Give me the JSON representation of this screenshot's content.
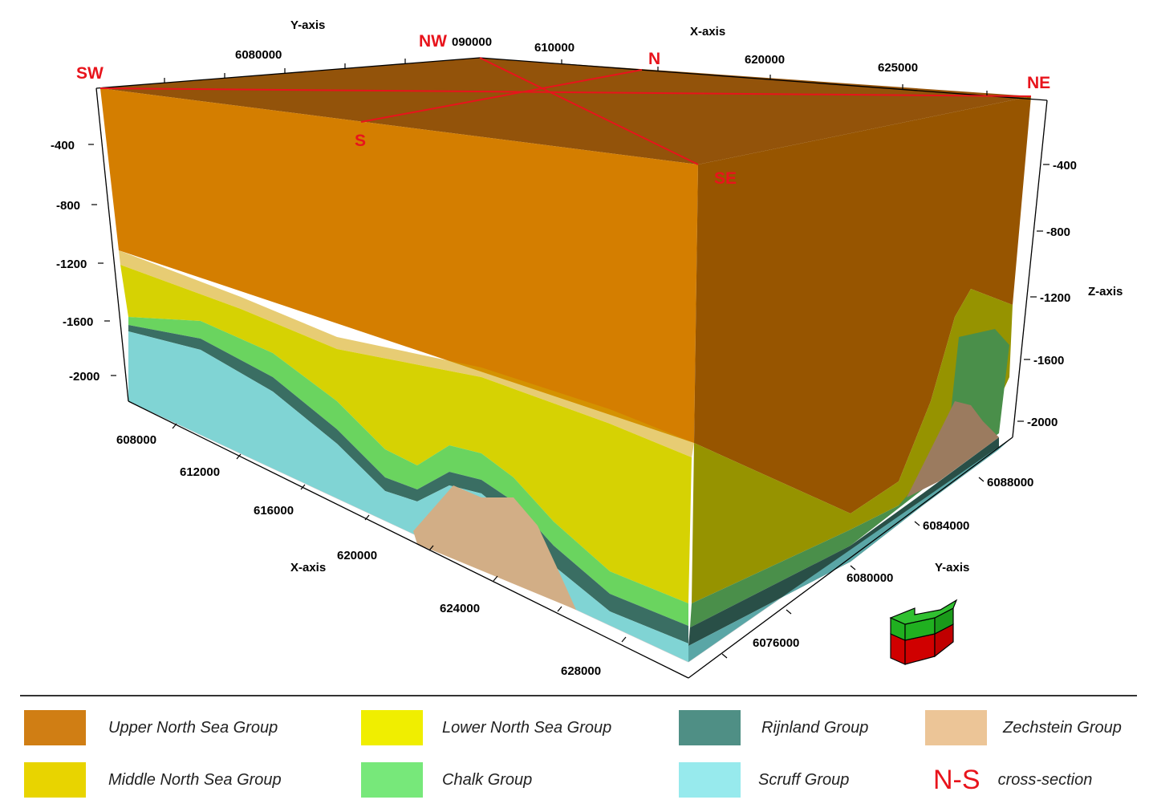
{
  "axes": {
    "y_axis_top_title": "Y-axis",
    "x_axis_top_title": "X-axis",
    "x_axis_front_title": "X-axis",
    "y_axis_right_title": "Y-axis",
    "z_axis_title": "Z-axis",
    "y_top_ticks": [
      "6080000",
      "090000"
    ],
    "x_top_ticks": [
      "610000",
      "620000",
      "625000"
    ],
    "z_left_ticks": [
      "-400",
      "-800",
      "-1200",
      "-1600",
      "-2000"
    ],
    "z_right_ticks": [
      "-400",
      "-800",
      "-1200",
      "-1600",
      "-2000"
    ],
    "x_front_ticks": [
      "608000",
      "612000",
      "616000",
      "620000",
      "624000",
      "628000"
    ],
    "y_right_ticks": [
      "6088000",
      "6084000",
      "6080000",
      "6076000"
    ]
  },
  "directions": {
    "sw": "SW",
    "nw": "NW",
    "n": "N",
    "ne": "NE",
    "s": "S",
    "se": "SE"
  },
  "colors": {
    "upper_north_sea_top": "#93530a",
    "upper_north_sea_front": "#d47e00",
    "upper_north_sea_side": "#975500",
    "middle_north_sea": "#d5d203",
    "lower_north_sea": "#dcd900",
    "chalk": "#6fd86a",
    "rijnland": "#3f7a70",
    "scruff": "#7fd2d2",
    "zechstein": "#d2af87",
    "section_line": "#e8141c"
  },
  "legend": [
    {
      "label": "Upper North Sea Group",
      "color": "#d07e14"
    },
    {
      "label": "Lower North Sea Group",
      "color": "#f0ee00"
    },
    {
      "label": "Rijnland Group",
      "color": "#4f8f85"
    },
    {
      "label": "Zechstein Group",
      "color": "#ecc597"
    },
    {
      "label": "Middle North Sea Group",
      "color": "#e8d400"
    },
    {
      "label": "Chalk Group",
      "color": "#77e87a"
    },
    {
      "label": "Scruff Group",
      "color": "#97eaed"
    }
  ],
  "cross_section": {
    "key": "N-S",
    "label": "cross-section"
  }
}
